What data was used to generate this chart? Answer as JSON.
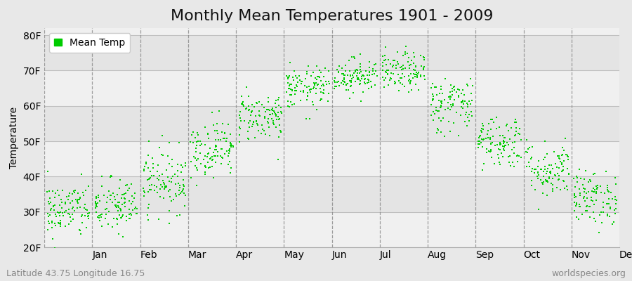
{
  "title": "Monthly Mean Temperatures 1901 - 2009",
  "ylabel": "Temperature",
  "yticks": [
    20,
    30,
    40,
    50,
    60,
    70,
    80
  ],
  "ytick_labels": [
    "20F",
    "30F",
    "40F",
    "50F",
    "60F",
    "70F",
    "80F"
  ],
  "ylim": [
    20,
    82
  ],
  "months": [
    "Jan",
    "Feb",
    "Mar",
    "Apr",
    "May",
    "Jun",
    "Jul",
    "Aug",
    "Sep",
    "Oct",
    "Nov",
    "Dec"
  ],
  "dot_color": "#00cc00",
  "background_color": "#e8e8e8",
  "band_colors": [
    "#f0f0f0",
    "#e4e4e4"
  ],
  "dashed_vline_color": "#888888",
  "footer_left": "Latitude 43.75 Longitude 16.75",
  "footer_right": "worldspecies.org",
  "legend_label": "Mean Temp",
  "title_fontsize": 16,
  "axis_fontsize": 10,
  "tick_fontsize": 10,
  "footer_fontsize": 9,
  "monthly_means": [
    30.5,
    31.5,
    39.0,
    48.0,
    57.0,
    65.0,
    68.5,
    69.5,
    60.5,
    50.0,
    42.0,
    34.0
  ],
  "monthly_stds": [
    4.0,
    4.0,
    4.5,
    4.0,
    3.5,
    3.0,
    2.5,
    2.8,
    4.0,
    3.8,
    4.0,
    3.8
  ],
  "n_points": 109,
  "seed": 42
}
